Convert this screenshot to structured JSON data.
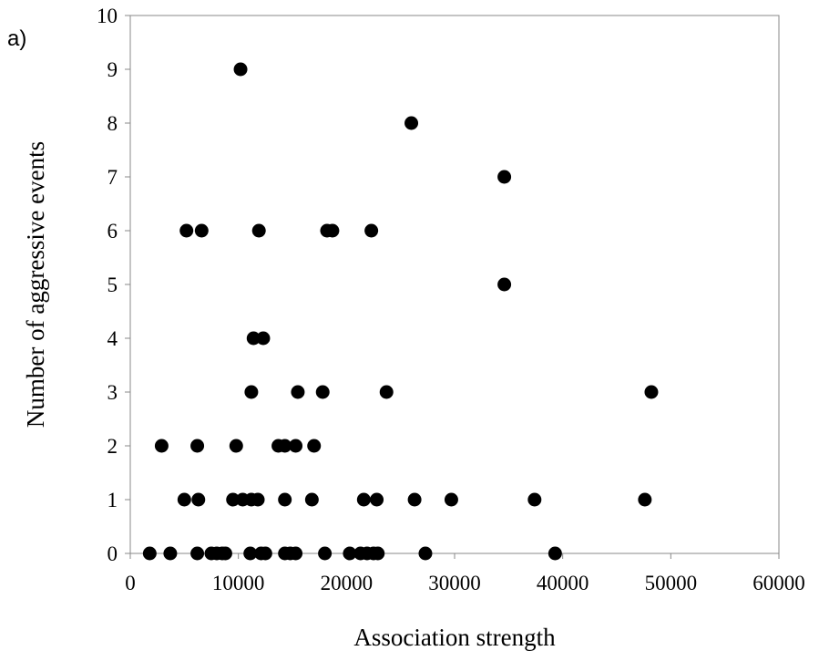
{
  "panel_label": "a)",
  "chart_data": {
    "type": "scatter",
    "title": "",
    "xlabel": "Association strength",
    "ylabel": "Number of aggressive events",
    "xlim": [
      0,
      60000
    ],
    "ylim": [
      0,
      10
    ],
    "xticks": [
      0,
      10000,
      20000,
      30000,
      40000,
      50000,
      60000
    ],
    "yticks": [
      0,
      1,
      2,
      3,
      4,
      5,
      6,
      7,
      8,
      9,
      10
    ],
    "grid": false,
    "legend": "none",
    "marker_color": "#000000",
    "points": [
      {
        "x": 1800,
        "y": 0
      },
      {
        "x": 3700,
        "y": 0
      },
      {
        "x": 6200,
        "y": 0
      },
      {
        "x": 7500,
        "y": 0
      },
      {
        "x": 8000,
        "y": 0
      },
      {
        "x": 8500,
        "y": 0
      },
      {
        "x": 8800,
        "y": 0
      },
      {
        "x": 11100,
        "y": 0
      },
      {
        "x": 12100,
        "y": 0
      },
      {
        "x": 12500,
        "y": 0
      },
      {
        "x": 14300,
        "y": 0
      },
      {
        "x": 14800,
        "y": 0
      },
      {
        "x": 15300,
        "y": 0
      },
      {
        "x": 18000,
        "y": 0
      },
      {
        "x": 20300,
        "y": 0
      },
      {
        "x": 21300,
        "y": 0
      },
      {
        "x": 21900,
        "y": 0
      },
      {
        "x": 22500,
        "y": 0
      },
      {
        "x": 22900,
        "y": 0
      },
      {
        "x": 27300,
        "y": 0
      },
      {
        "x": 39300,
        "y": 0
      },
      {
        "x": 5000,
        "y": 1
      },
      {
        "x": 6300,
        "y": 1
      },
      {
        "x": 9500,
        "y": 1
      },
      {
        "x": 10400,
        "y": 1
      },
      {
        "x": 11200,
        "y": 1
      },
      {
        "x": 11800,
        "y": 1
      },
      {
        "x": 14300,
        "y": 1
      },
      {
        "x": 16800,
        "y": 1
      },
      {
        "x": 21600,
        "y": 1
      },
      {
        "x": 22800,
        "y": 1
      },
      {
        "x": 26300,
        "y": 1
      },
      {
        "x": 29700,
        "y": 1
      },
      {
        "x": 37400,
        "y": 1
      },
      {
        "x": 47600,
        "y": 1
      },
      {
        "x": 2900,
        "y": 2
      },
      {
        "x": 6200,
        "y": 2
      },
      {
        "x": 9800,
        "y": 2
      },
      {
        "x": 13700,
        "y": 2
      },
      {
        "x": 14300,
        "y": 2
      },
      {
        "x": 15300,
        "y": 2
      },
      {
        "x": 17000,
        "y": 2
      },
      {
        "x": 11200,
        "y": 3
      },
      {
        "x": 15500,
        "y": 3
      },
      {
        "x": 17800,
        "y": 3
      },
      {
        "x": 23700,
        "y": 3
      },
      {
        "x": 48200,
        "y": 3
      },
      {
        "x": 11400,
        "y": 4
      },
      {
        "x": 12300,
        "y": 4
      },
      {
        "x": 34600,
        "y": 5
      },
      {
        "x": 5200,
        "y": 6
      },
      {
        "x": 6600,
        "y": 6
      },
      {
        "x": 11900,
        "y": 6
      },
      {
        "x": 18200,
        "y": 6
      },
      {
        "x": 18700,
        "y": 6
      },
      {
        "x": 22300,
        "y": 6
      },
      {
        "x": 34600,
        "y": 7
      },
      {
        "x": 26000,
        "y": 8
      },
      {
        "x": 10200,
        "y": 9
      }
    ]
  }
}
